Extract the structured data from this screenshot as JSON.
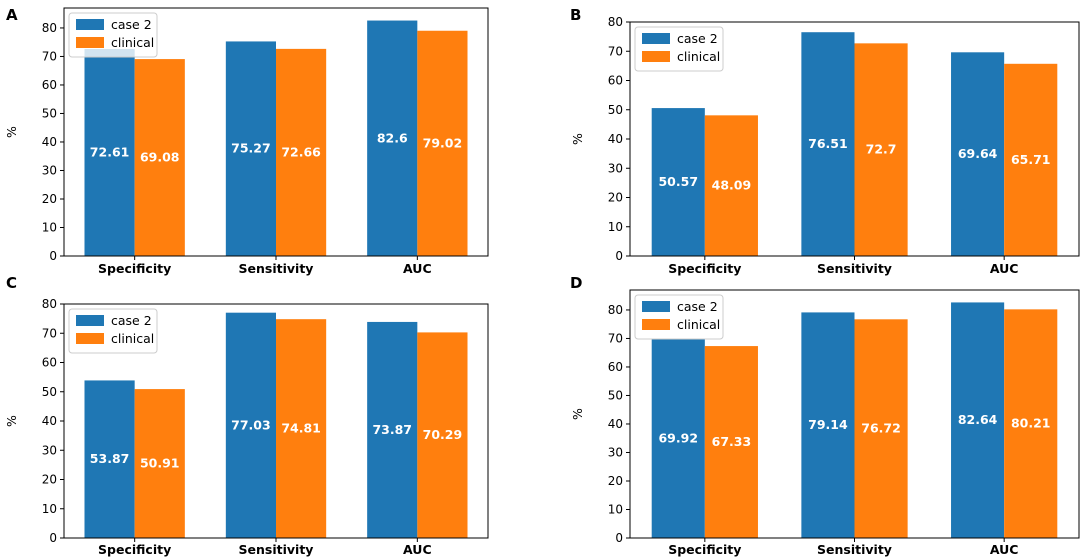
{
  "chart_data": [
    {
      "panel": "A",
      "type": "bar",
      "categories": [
        "Specificity",
        "Sensitivity",
        "AUC"
      ],
      "series": [
        {
          "name": "case 2",
          "color": "#1f77b4",
          "values": [
            72.61,
            75.27,
            82.6
          ],
          "labels": [
            "72.61",
            "75.27",
            "82.6"
          ]
        },
        {
          "name": "clinical",
          "color": "#ff7f0e",
          "values": [
            69.08,
            72.66,
            79.02
          ],
          "labels": [
            "69.08",
            "72.66",
            "79.02"
          ]
        }
      ],
      "ylabel": "%",
      "ylim": [
        0,
        87
      ],
      "yticks": [
        0,
        10,
        20,
        30,
        40,
        50,
        60,
        70,
        80
      ],
      "legend": "top-left"
    },
    {
      "panel": "B",
      "type": "bar",
      "categories": [
        "Specificity",
        "Sensitivity",
        "AUC"
      ],
      "series": [
        {
          "name": "case 2",
          "color": "#1f77b4",
          "values": [
            50.57,
            76.51,
            69.64
          ],
          "labels": [
            "50.57",
            "76.51",
            "69.64"
          ]
        },
        {
          "name": "clinical",
          "color": "#ff7f0e",
          "values": [
            48.09,
            72.7,
            65.71
          ],
          "labels": [
            "48.09",
            "72.7",
            "65.71"
          ]
        }
      ],
      "ylabel": "%",
      "ylim": [
        0,
        80
      ],
      "yticks": [
        0,
        10,
        20,
        30,
        40,
        50,
        60,
        70,
        80
      ],
      "legend": "top-left"
    },
    {
      "panel": "C",
      "type": "bar",
      "categories": [
        "Specificity",
        "Sensitivity",
        "AUC"
      ],
      "series": [
        {
          "name": "case 2",
          "color": "#1f77b4",
          "values": [
            53.87,
            77.03,
            73.87
          ],
          "labels": [
            "53.87",
            "77.03",
            "73.87"
          ]
        },
        {
          "name": "clinical",
          "color": "#ff7f0e",
          "values": [
            50.91,
            74.81,
            70.29
          ],
          "labels": [
            "50.91",
            "74.81",
            "70.29"
          ]
        }
      ],
      "ylabel": "%",
      "ylim": [
        0,
        80
      ],
      "yticks": [
        0,
        10,
        20,
        30,
        40,
        50,
        60,
        70,
        80
      ],
      "legend": "top-left"
    },
    {
      "panel": "D",
      "type": "bar",
      "categories": [
        "Specificity",
        "Sensitivity",
        "AUC"
      ],
      "series": [
        {
          "name": "case 2",
          "color": "#1f77b4",
          "values": [
            69.92,
            79.14,
            82.64
          ],
          "labels": [
            "69.92",
            "79.14",
            "82.64"
          ]
        },
        {
          "name": "clinical",
          "color": "#ff7f0e",
          "values": [
            67.33,
            76.72,
            80.21
          ],
          "labels": [
            "67.33",
            "76.72",
            "80.21"
          ]
        }
      ],
      "ylabel": "%",
      "ylim": [
        0,
        87
      ],
      "yticks": [
        0,
        10,
        20,
        30,
        40,
        50,
        60,
        70,
        80
      ],
      "legend": "top-left"
    }
  ]
}
